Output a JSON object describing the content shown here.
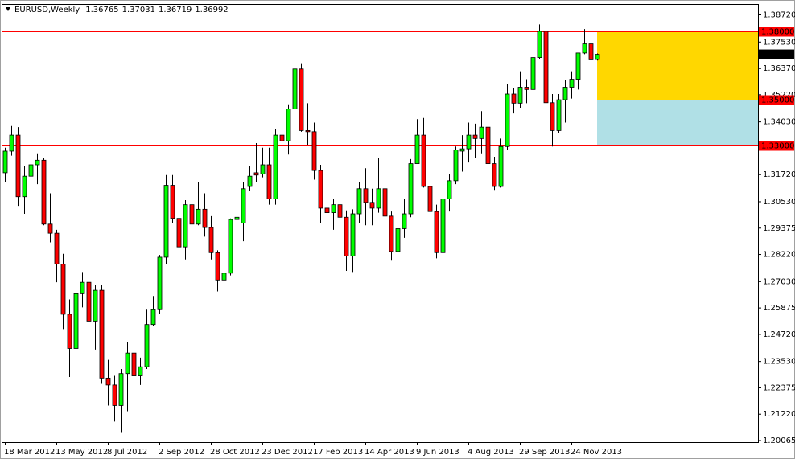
{
  "chart_data": {
    "type": "candlestick",
    "symbol": "EURUSD,Weekly",
    "categories": [
      "18 Mar 2012",
      null,
      null,
      null,
      null,
      null,
      null,
      null,
      "13 May 2012",
      null,
      null,
      null,
      null,
      null,
      null,
      null,
      "8 Jul 2012",
      null,
      null,
      null,
      null,
      null,
      null,
      null,
      "2 Sep 2012",
      null,
      null,
      null,
      null,
      null,
      null,
      null,
      "28 Oct 2012",
      null,
      null,
      null,
      null,
      null,
      null,
      null,
      "23 Dec 2012",
      null,
      null,
      null,
      null,
      null,
      null,
      null,
      "17 Feb 2013",
      null,
      null,
      null,
      null,
      null,
      null,
      null,
      "14 Apr 2013",
      null,
      null,
      null,
      null,
      null,
      null,
      null,
      "9 Jun 2013",
      null,
      null,
      null,
      null,
      null,
      null,
      null,
      "4 Aug 2013",
      null,
      null,
      null,
      null,
      null,
      null,
      null,
      "29 Sep 2013",
      null,
      null,
      null,
      null,
      null,
      null,
      null,
      "24 Nov 2013",
      null,
      null,
      null,
      null
    ],
    "ohlc": [
      [
        1.318,
        1.329,
        1.314,
        1.3275
      ],
      [
        1.3275,
        1.3385,
        1.3255,
        1.3345
      ],
      [
        1.3345,
        1.338,
        1.3035,
        1.3075
      ],
      [
        1.3075,
        1.321,
        1.3,
        1.3165
      ],
      [
        1.3165,
        1.3225,
        1.303,
        1.3215
      ],
      [
        1.3215,
        1.3265,
        1.313,
        1.3235
      ],
      [
        1.3235,
        1.3245,
        1.295,
        1.2955
      ],
      [
        1.2955,
        1.309,
        1.2875,
        1.2915
      ],
      [
        1.2915,
        1.293,
        1.27,
        1.278
      ],
      [
        1.278,
        1.2825,
        1.2495,
        1.256
      ],
      [
        1.256,
        1.2625,
        1.2285,
        1.241
      ],
      [
        1.241,
        1.272,
        1.239,
        1.265
      ],
      [
        1.265,
        1.2745,
        1.259,
        1.27
      ],
      [
        1.27,
        1.2745,
        1.247,
        1.253
      ],
      [
        1.253,
        1.269,
        1.2405,
        1.2665
      ],
      [
        1.2665,
        1.269,
        1.2255,
        1.228
      ],
      [
        1.228,
        1.236,
        1.216,
        1.225
      ],
      [
        1.225,
        1.229,
        1.209,
        1.216
      ],
      [
        1.216,
        1.232,
        1.204,
        1.23
      ],
      [
        1.23,
        1.244,
        1.2135,
        1.239
      ],
      [
        1.239,
        1.244,
        1.224,
        1.229
      ],
      [
        1.229,
        1.237,
        1.225,
        1.233
      ],
      [
        1.233,
        1.258,
        1.232,
        1.2515
      ],
      [
        1.2515,
        1.264,
        1.251,
        1.258
      ],
      [
        1.258,
        1.282,
        1.256,
        1.281
      ],
      [
        1.281,
        1.317,
        1.278,
        1.3125
      ],
      [
        1.3125,
        1.317,
        1.296,
        1.298
      ],
      [
        1.298,
        1.3,
        1.28,
        1.2855
      ],
      [
        1.2855,
        1.306,
        1.28,
        1.304
      ],
      [
        1.304,
        1.308,
        1.288,
        1.2955
      ],
      [
        1.2955,
        1.314,
        1.295,
        1.302
      ],
      [
        1.302,
        1.309,
        1.29,
        1.294
      ],
      [
        1.294,
        1.299,
        1.28,
        1.283
      ],
      [
        1.283,
        1.284,
        1.266,
        1.271
      ],
      [
        1.271,
        1.28,
        1.268,
        1.274
      ],
      [
        1.274,
        1.298,
        1.273,
        1.2975
      ],
      [
        1.2975,
        1.3015,
        1.29,
        1.2985
      ],
      [
        1.296,
        1.314,
        1.288,
        1.311
      ],
      [
        1.312,
        1.321,
        1.31,
        1.3165
      ],
      [
        1.318,
        1.331,
        1.314,
        1.317
      ],
      [
        1.3175,
        1.329,
        1.316,
        1.3215
      ],
      [
        1.3215,
        1.329,
        1.304,
        1.3065
      ],
      [
        1.3065,
        1.337,
        1.304,
        1.3345
      ],
      [
        1.3345,
        1.34,
        1.326,
        1.332
      ],
      [
        1.332,
        1.348,
        1.326,
        1.346
      ],
      [
        1.346,
        1.3711,
        1.344,
        1.3635
      ],
      [
        1.3635,
        1.366,
        1.336,
        1.3365
      ],
      [
        1.3365,
        1.3485,
        1.33,
        1.336
      ],
      [
        1.336,
        1.34,
        1.315,
        1.319
      ],
      [
        1.319,
        1.3215,
        1.296,
        1.3025
      ],
      [
        1.3025,
        1.311,
        1.2955,
        1.3005
      ],
      [
        1.3005,
        1.3065,
        1.293,
        1.304
      ],
      [
        1.304,
        1.306,
        1.287,
        1.2985
      ],
      [
        1.2985,
        1.3015,
        1.275,
        1.2815
      ],
      [
        1.2815,
        1.302,
        1.2745,
        1.3
      ],
      [
        1.3,
        1.314,
        1.296,
        1.311
      ],
      [
        1.311,
        1.32,
        1.295,
        1.305
      ],
      [
        1.305,
        1.311,
        1.295,
        1.3025
      ],
      [
        1.3025,
        1.3245,
        1.3005,
        1.311
      ],
      [
        1.311,
        1.324,
        1.295,
        1.299
      ],
      [
        1.299,
        1.301,
        1.2795,
        1.2835
      ],
      [
        1.2835,
        1.299,
        1.2825,
        1.2935
      ],
      [
        1.2935,
        1.3065,
        1.2895,
        1.3
      ],
      [
        1.3,
        1.324,
        1.2985,
        1.322
      ],
      [
        1.322,
        1.3415,
        1.322,
        1.3345
      ],
      [
        1.3345,
        1.342,
        1.3115,
        1.312
      ],
      [
        1.312,
        1.32,
        1.2995,
        1.301
      ],
      [
        1.301,
        1.304,
        1.2805,
        1.283
      ],
      [
        1.283,
        1.317,
        1.2755,
        1.3065
      ],
      [
        1.3065,
        1.3175,
        1.301,
        1.3145
      ],
      [
        1.3145,
        1.3295,
        1.313,
        1.328
      ],
      [
        1.3275,
        1.3345,
        1.3185,
        1.3285
      ],
      [
        1.3285,
        1.34,
        1.3225,
        1.3345
      ],
      [
        1.3345,
        1.3395,
        1.3245,
        1.333
      ],
      [
        1.333,
        1.345,
        1.3265,
        1.338
      ],
      [
        1.338,
        1.342,
        1.3175,
        1.322
      ],
      [
        1.322,
        1.325,
        1.3105,
        1.312
      ],
      [
        1.312,
        1.333,
        1.3115,
        1.3295
      ],
      [
        1.3295,
        1.357,
        1.328,
        1.3525
      ],
      [
        1.3525,
        1.355,
        1.344,
        1.3485
      ],
      [
        1.3485,
        1.3625,
        1.3465,
        1.3555
      ],
      [
        1.3555,
        1.359,
        1.3485,
        1.3545
      ],
      [
        1.3545,
        1.3705,
        1.3495,
        1.3685
      ],
      [
        1.3685,
        1.383,
        1.368,
        1.38
      ],
      [
        1.38,
        1.3815,
        1.348,
        1.3487
      ],
      [
        1.3487,
        1.3525,
        1.3295,
        1.3365
      ],
      [
        1.3365,
        1.3525,
        1.3355,
        1.35
      ],
      [
        1.35,
        1.3585,
        1.34,
        1.3555
      ],
      [
        1.3555,
        1.3625,
        1.3505,
        1.359
      ],
      [
        1.359,
        1.3705,
        1.3545,
        1.3705
      ],
      [
        1.3705,
        1.381,
        1.37,
        1.3745
      ],
      [
        1.3745,
        1.381,
        1.3625,
        1.3675
      ],
      [
        1.36765,
        1.37031,
        1.36719,
        1.36992
      ]
    ],
    "bull_color": "#00ff00",
    "bear_color": "#ff0000",
    "ylim": [
      1.19995,
      1.39196
    ],
    "yticks": [
      {
        "value": 1.3872,
        "label": "1.38720"
      },
      {
        "value": 1.3753,
        "label": "1.37530"
      },
      {
        "value": 1.3637,
        "label": "1.36370"
      },
      {
        "value": 1.3522,
        "label": "1.35220"
      },
      {
        "value": 1.3403,
        "label": "1.34030"
      },
      {
        "value": 1.3172,
        "label": "1.31720"
      },
      {
        "value": 1.3053,
        "label": "1.30530"
      },
      1.29375,
      {
        "value": 1.2822,
        "label": "1.28220"
      },
      {
        "value": 1.2703,
        "label": "1.27030"
      },
      1.25875,
      {
        "value": 1.2472,
        "label": "1.24720"
      },
      {
        "value": 1.2353,
        "label": "1.23530"
      },
      1.22375,
      {
        "value": 1.2122,
        "label": "1.21220"
      },
      1.20065
    ],
    "hlines": [
      {
        "value": 1.38,
        "label": "1.38000",
        "color": "#ff0000"
      },
      {
        "value": 1.35,
        "label": "1.35000",
        "color": "#ff0000"
      },
      {
        "value": 1.33,
        "label": "1.33000",
        "color": "#ff0000"
      }
    ],
    "zones": [
      {
        "top": 1.38,
        "bottom": 1.35,
        "color": "#ffd700"
      },
      {
        "top": 1.35,
        "bottom": 1.33,
        "color": "#b0e0e6"
      }
    ]
  }
}
